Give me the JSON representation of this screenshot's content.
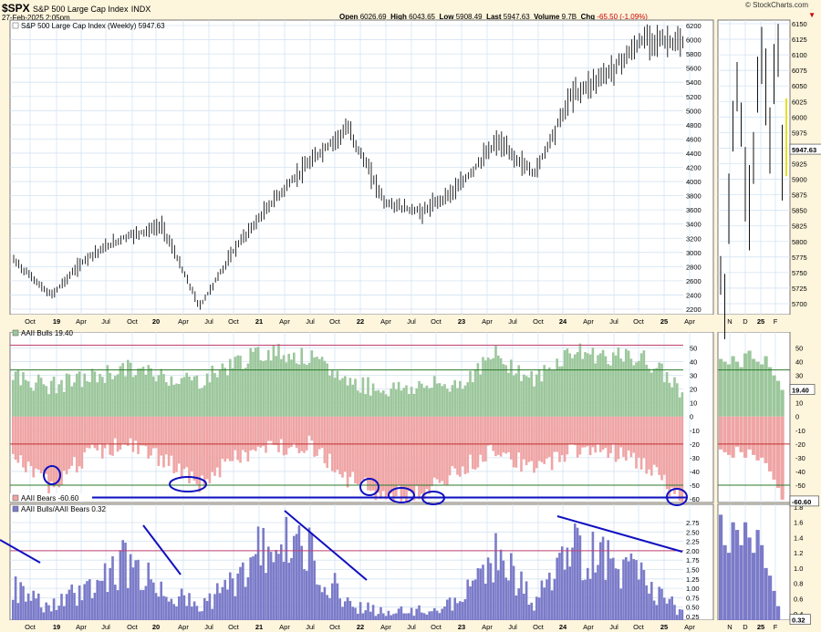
{
  "header": {
    "symbol": "$SPX",
    "name": "S&P 500 Large Cap Index",
    "exchange": "INDX",
    "date": "27-Feb-2025 2:05pm",
    "open_label": "Open",
    "open": "6026.69",
    "high_label": "High",
    "high": "6043.65",
    "low_label": "Low",
    "low": "5908.49",
    "last_label": "Last",
    "last": "5947.63",
    "volume_label": "Volume",
    "volume": "9.7B",
    "chg_label": "Chg",
    "chg": "-65.50 (-1.09%)",
    "brand": "© StockCharts.com"
  },
  "panels": {
    "price": {
      "legend": "S&P 500 Large Cap Index (Weekly) 5947.63",
      "last_tag": "5947.63"
    },
    "bulls": {
      "legend": "AAII Bulls 19.40",
      "last_tag": "19.40"
    },
    "bears": {
      "legend": "AAII Bears -60.60",
      "last_tag": "-60.60"
    },
    "ratio": {
      "legend": "AAII Bulls/AAII Bears 0.32",
      "last_tag": "0.32"
    }
  },
  "axes": {
    "price_ticks": [
      "6200",
      "6000",
      "5800",
      "5600",
      "5400",
      "5200",
      "5000",
      "4800",
      "4600",
      "4400",
      "4200",
      "4000",
      "3800",
      "3600",
      "3400",
      "3200",
      "3000",
      "2800",
      "2600",
      "2400",
      "2200"
    ],
    "daily_price_ticks": [
      "6150",
      "6125",
      "6100",
      "6075",
      "6050",
      "6025",
      "6000",
      "5975",
      "5950",
      "5925",
      "5900",
      "5875",
      "5850",
      "5825",
      "5800",
      "5775",
      "5750",
      "5725",
      "5700"
    ],
    "sentiment_ticks": [
      "50",
      "40",
      "30",
      "20",
      "10",
      "0",
      "-10",
      "-20",
      "-30",
      "-40",
      "-50",
      "-60"
    ],
    "ratio_ticks": [
      "2.75",
      "2.50",
      "2.25",
      "2.00",
      "1.75",
      "1.50",
      "1.25",
      "1.00",
      "0.75",
      "0.50",
      "0.25"
    ],
    "daily_ratio_ticks": [
      "1.8",
      "1.6",
      "1.4",
      "1.2",
      "1.0",
      "0.8",
      "0.6",
      "0.4"
    ],
    "x_labels": [
      {
        "t": "Oct",
        "bold": false
      },
      {
        "t": "19",
        "bold": true
      },
      {
        "t": "Apr",
        "bold": false
      },
      {
        "t": "Jul",
        "bold": false
      },
      {
        "t": "Oct",
        "bold": false
      },
      {
        "t": "20",
        "bold": true
      },
      {
        "t": "Apr",
        "bold": false
      },
      {
        "t": "Jul",
        "bold": false
      },
      {
        "t": "Oct",
        "bold": false
      },
      {
        "t": "21",
        "bold": true
      },
      {
        "t": "Apr",
        "bold": false
      },
      {
        "t": "Jul",
        "bold": false
      },
      {
        "t": "Oct",
        "bold": false
      },
      {
        "t": "22",
        "bold": true
      },
      {
        "t": "Apr",
        "bold": false
      },
      {
        "t": "Jul",
        "bold": false
      },
      {
        "t": "Oct",
        "bold": false
      },
      {
        "t": "23",
        "bold": true
      },
      {
        "t": "Apr",
        "bold": false
      },
      {
        "t": "Jul",
        "bold": false
      },
      {
        "t": "Oct",
        "bold": false
      },
      {
        "t": "24",
        "bold": true
      },
      {
        "t": "Apr",
        "bold": false
      },
      {
        "t": "Jul",
        "bold": false
      },
      {
        "t": "Oct",
        "bold": false
      },
      {
        "t": "25",
        "bold": true
      },
      {
        "t": "Apr",
        "bold": false
      }
    ],
    "daily_x_labels": [
      {
        "t": "N",
        "bold": false
      },
      {
        "t": "D",
        "bold": false
      },
      {
        "t": "25",
        "bold": true
      },
      {
        "t": "F",
        "bold": false
      }
    ]
  },
  "chart_data": {
    "type": "line",
    "x": [
      "2018-09",
      "2018-12",
      "2019-06",
      "2019-12",
      "2020-02",
      "2020-03",
      "2020-06",
      "2020-12",
      "2021-06",
      "2021-12",
      "2022-06",
      "2022-10",
      "2023-03",
      "2023-07",
      "2023-10",
      "2024-03",
      "2024-07",
      "2024-12",
      "2025-02"
    ],
    "series": [
      {
        "name": "S&P 500 Large Cap Index (Weekly)",
        "values": [
          2900,
          2400,
          2950,
          3230,
          3380,
          2240,
          3100,
          3750,
          4300,
          4770,
          3700,
          3580,
          3950,
          4580,
          4120,
          5230,
          5550,
          6050,
          5947.63
        ]
      },
      {
        "name": "AAII Bulls",
        "values": [
          30,
          22,
          28,
          35,
          30,
          26,
          40,
          48,
          42,
          26,
          20,
          22,
          24,
          45,
          26,
          48,
          44,
          42,
          19.4
        ]
      },
      {
        "name": "AAII Bears",
        "values": [
          -30,
          -50,
          -28,
          -20,
          -30,
          -50,
          -30,
          -22,
          -20,
          -45,
          -58,
          -56,
          -40,
          -22,
          -40,
          -24,
          -24,
          -35,
          -60.6
        ]
      },
      {
        "name": "AAII Bulls/AAII Bears",
        "values": [
          1.0,
          0.5,
          1.0,
          1.7,
          1.0,
          0.5,
          1.2,
          2.4,
          1.9,
          0.6,
          0.35,
          0.4,
          0.6,
          2.0,
          0.6,
          2.0,
          1.8,
          1.2,
          0.32
        ]
      }
    ],
    "ylim_price": [
      2200,
      6200
    ],
    "ylim_sentiment": [
      -60,
      55
    ],
    "ylim_ratio": [
      0.25,
      2.9
    ],
    "grid": true,
    "legend": "top-left"
  }
}
